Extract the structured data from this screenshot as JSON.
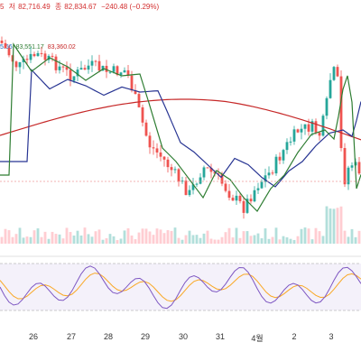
{
  "header": {
    "ohlc_fragment_left": "5",
    "low_label": "저",
    "low_value": "82,716.49",
    "close_label": "종",
    "close_value": "82,834.67",
    "change": "−240.48 (−0.29%)"
  },
  "ma_readout": {
    "v1": "5.66",
    "v2": "83,551.17",
    "v3": "83,360.02"
  },
  "date_axis": {
    "ticks": [
      "26",
      "27",
      "28",
      "29",
      "30",
      "31",
      "4월",
      "2",
      "3"
    ]
  },
  "colors": {
    "up": "#26a69a",
    "down": "#ef5350",
    "ma_short": "#2e7d32",
    "ma_mid": "#283593",
    "ma_long": "#c62828",
    "rsi_line": "#7e57c2",
    "rsi_signal": "#f9a825"
  },
  "icons": {}
}
